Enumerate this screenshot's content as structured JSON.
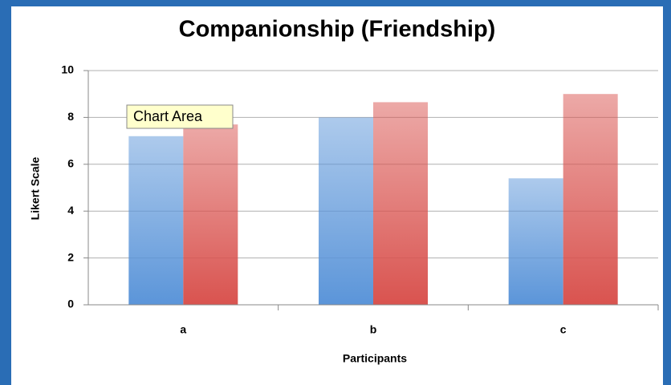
{
  "chart_data": {
    "type": "bar",
    "title": "Companionship (Friendship)",
    "x_label": "Participants",
    "y_label": "Likert Scale",
    "annotation": "Chart Area",
    "categories": [
      "a",
      "b",
      "c"
    ],
    "series": [
      {
        "color": "#5b95d9",
        "values": [
          7.2,
          8.0,
          5.4
        ]
      },
      {
        "color": "#d9534f",
        "values": [
          7.7,
          8.65,
          9.0
        ]
      }
    ],
    "ylim": [
      0,
      10
    ],
    "yticks": [
      0,
      2,
      4,
      6,
      8,
      10
    ],
    "grid": true
  }
}
